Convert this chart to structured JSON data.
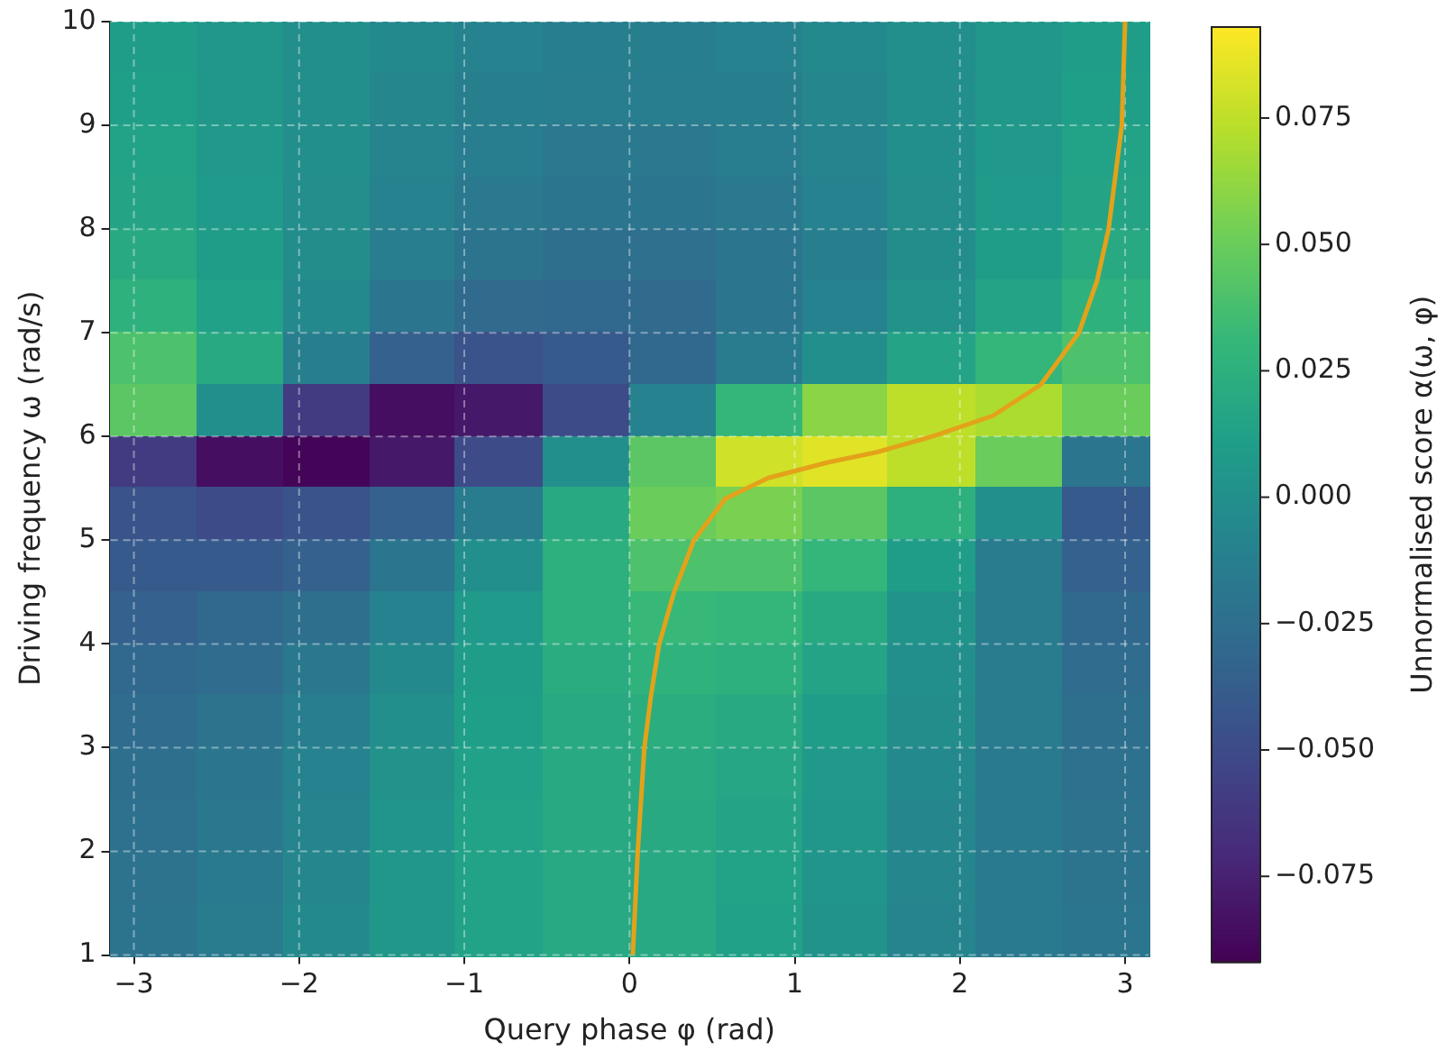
{
  "chart_data": {
    "type": "heatmap",
    "xlabel": "Query phase φ (rad)",
    "ylabel": "Driving frequency ω (rad/s)",
    "clabel": "Unnormalised score α(ω, φ)",
    "x": [
      -2.88,
      -2.36,
      -1.83,
      -1.31,
      -0.79,
      -0.26,
      0.26,
      0.79,
      1.31,
      1.83,
      2.36,
      2.88
    ],
    "xlim": [
      -3.1416,
      3.1416
    ],
    "ylim": [
      1,
      10
    ],
    "xticks": [
      -3,
      -2,
      -1,
      0,
      1,
      2,
      3
    ],
    "yticks": [
      1,
      2,
      3,
      4,
      5,
      6,
      7,
      8,
      9,
      10
    ],
    "clim": [
      -0.092,
      0.093
    ],
    "cticks": [
      {
        "value": -0.075,
        "label": "−0.075"
      },
      {
        "value": -0.05,
        "label": "−0.050"
      },
      {
        "value": -0.025,
        "label": "−0.025"
      },
      {
        "value": 0,
        "label": "0.000"
      },
      {
        "value": 0.025,
        "label": "0.025"
      },
      {
        "value": 0.05,
        "label": "0.050"
      },
      {
        "value": 0.075,
        "label": "0.075"
      }
    ],
    "grid": true,
    "cells": [
      [
        0.01,
        0.005,
        0,
        -0.005,
        -0.01,
        -0.012,
        -0.012,
        -0.01,
        -0.005,
        0,
        0.005,
        0.01
      ],
      [
        0.012,
        0.006,
        0,
        -0.006,
        -0.012,
        -0.014,
        -0.014,
        -0.012,
        -0.006,
        0,
        0.006,
        0.012
      ],
      [
        0.014,
        0.007,
        0,
        -0.008,
        -0.014,
        -0.017,
        -0.017,
        -0.014,
        -0.008,
        0,
        0.007,
        0.014
      ],
      [
        0.016,
        0.008,
        -0.001,
        -0.01,
        -0.017,
        -0.02,
        -0.02,
        -0.017,
        -0.01,
        -0.001,
        0.008,
        0.016
      ],
      [
        0.02,
        0.01,
        -0.002,
        -0.013,
        -0.021,
        -0.025,
        -0.024,
        -0.02,
        -0.012,
        -0.002,
        0.01,
        0.02
      ],
      [
        0.026,
        0.013,
        -0.005,
        -0.02,
        -0.028,
        -0.03,
        -0.028,
        -0.02,
        -0.01,
        0.002,
        0.015,
        0.026
      ],
      [
        0.04,
        0.02,
        -0.012,
        -0.035,
        -0.045,
        -0.04,
        -0.03,
        -0.015,
        0,
        0.015,
        0.03,
        0.04
      ],
      [
        0.045,
        0,
        -0.06,
        -0.085,
        -0.08,
        -0.05,
        -0.01,
        0.03,
        0.06,
        0.075,
        0.07,
        0.05
      ],
      [
        -0.06,
        -0.085,
        -0.09,
        -0.08,
        -0.05,
        0,
        0.045,
        0.08,
        0.085,
        0.075,
        0.05,
        -0.02
      ],
      [
        -0.045,
        -0.05,
        -0.045,
        -0.035,
        -0.015,
        0.02,
        0.05,
        0.055,
        0.045,
        0.025,
        0,
        -0.04
      ],
      [
        -0.04,
        -0.04,
        -0.035,
        -0.02,
        0,
        0.025,
        0.04,
        0.04,
        0.03,
        0.01,
        -0.015,
        -0.035
      ],
      [
        -0.035,
        -0.03,
        -0.025,
        -0.01,
        0.008,
        0.025,
        0.032,
        0.03,
        0.02,
        0.003,
        -0.015,
        -0.03
      ],
      [
        -0.03,
        -0.027,
        -0.018,
        -0.005,
        0.01,
        0.022,
        0.027,
        0.025,
        0.015,
        0,
        -0.015,
        -0.027
      ],
      [
        -0.027,
        -0.022,
        -0.013,
        0,
        0.012,
        0.02,
        0.023,
        0.02,
        0.01,
        -0.002,
        -0.015,
        -0.025
      ],
      [
        -0.025,
        -0.02,
        -0.01,
        0.002,
        0.013,
        0.02,
        0.021,
        0.017,
        0.007,
        -0.005,
        -0.016,
        -0.023
      ],
      [
        -0.023,
        -0.018,
        -0.008,
        0.004,
        0.014,
        0.02,
        0.02,
        0.015,
        0.005,
        -0.006,
        -0.016,
        -0.022
      ],
      [
        -0.022,
        -0.016,
        -0.006,
        0.005,
        0.014,
        0.019,
        0.019,
        0.014,
        0.004,
        -0.007,
        -0.016,
        -0.021
      ],
      [
        -0.021,
        -0.015,
        -0.005,
        0.006,
        0.014,
        0.019,
        0.019,
        0.013,
        0.003,
        -0.008,
        -0.016,
        -0.02
      ]
    ],
    "series": [
      {
        "type": "line",
        "color": "#e3a21a",
        "x": [
          0.02,
          0.05,
          0.09,
          0.13,
          0.18,
          0.27,
          0.39,
          0.58,
          0.84,
          1.2,
          1.5,
          1.83,
          2.2,
          2.49,
          2.72,
          2.83,
          2.9,
          2.98,
          3.0
        ],
        "values": [
          1,
          2,
          3,
          3.5,
          4,
          4.5,
          5,
          5.4,
          5.6,
          5.75,
          5.85,
          6,
          6.2,
          6.5,
          7,
          7.5,
          8,
          9,
          10
        ]
      }
    ]
  }
}
